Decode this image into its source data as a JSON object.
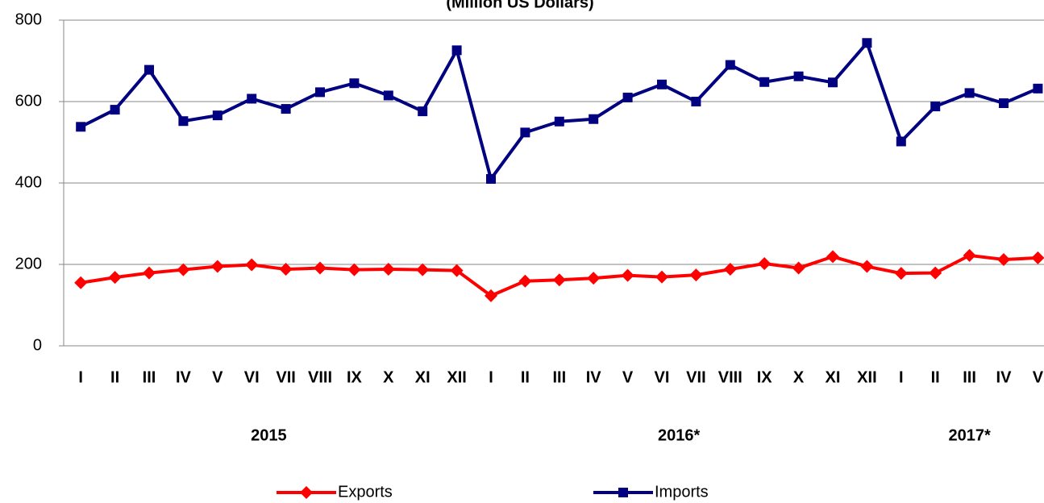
{
  "chart_data": {
    "type": "line",
    "subtitle": "(Million US Dollars)",
    "categories": [
      "I",
      "II",
      "III",
      "IV",
      "V",
      "VI",
      "VII",
      "VIII",
      "IX",
      "X",
      "XI",
      "XII",
      "I",
      "II",
      "III",
      "IV",
      "V",
      "VI",
      "VII",
      "VIII",
      "IX",
      "X",
      "XI",
      "XII",
      "I",
      "II",
      "III",
      "IV",
      "V"
    ],
    "groups": [
      "2015",
      "2016*",
      "2017*"
    ],
    "series": [
      {
        "name": "Exports",
        "color": "#ff0000",
        "marker": "diamond",
        "values": [
          155,
          168,
          179,
          187,
          195,
          199,
          188,
          191,
          187,
          188,
          187,
          185,
          123,
          159,
          162,
          166,
          173,
          169,
          174,
          188,
          202,
          191,
          219,
          195,
          178,
          179,
          222,
          212,
          216
        ]
      },
      {
        "name": "Imports",
        "color": "#000080",
        "marker": "square",
        "values": [
          538,
          580,
          678,
          552,
          566,
          607,
          582,
          623,
          645,
          615,
          576,
          726,
          410,
          524,
          551,
          557,
          610,
          642,
          600,
          690,
          648,
          662,
          647,
          744,
          502,
          588,
          621,
          596,
          632
        ]
      }
    ],
    "ylim": [
      0,
      800
    ],
    "yticks": [
      0,
      200,
      400,
      600,
      800
    ],
    "grid": true,
    "legend": "bottom"
  }
}
